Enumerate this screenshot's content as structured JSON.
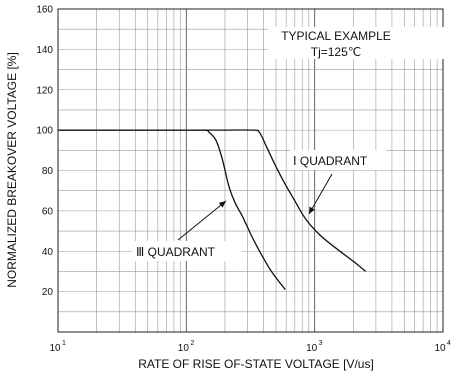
{
  "chart_data": {
    "type": "line",
    "xlabel": "RATE OF RISE OF-STATE VOLTAGE [V/us]",
    "ylabel": "NORMALIZED BREAKOVER VOLTAGE [%]",
    "x_scale": "log",
    "xlim": [
      10,
      10000
    ],
    "ylim": [
      0,
      160
    ],
    "x_ticks": [
      {
        "value": 10,
        "base": "10",
        "exp": "1"
      },
      {
        "value": 100,
        "base": "10",
        "exp": "2"
      },
      {
        "value": 1000,
        "base": "10",
        "exp": "3"
      },
      {
        "value": 10000,
        "base": "10",
        "exp": "4"
      }
    ],
    "y_ticks": [
      20,
      40,
      60,
      80,
      100,
      120,
      140,
      160
    ],
    "grid": true,
    "annotations": {
      "typical_example": "TYPICAL EXAMPLE",
      "tj": "Tj=125℃",
      "quadrant_1": "Ⅰ QUADRANT",
      "quadrant_3": "Ⅲ QUADRANT"
    },
    "series": [
      {
        "x": [
          10,
          100,
          140,
          150,
          170,
          190,
          215,
          240,
          275,
          320,
          380,
          460,
          590
        ],
        "y": [
          100,
          100,
          100,
          99,
          95,
          86,
          72,
          64,
          57,
          48,
          39,
          30,
          21
        ]
      },
      {
        "x": [
          10,
          100,
          200,
          330,
          370,
          420,
          490,
          580,
          700,
          850,
          1100,
          1500,
          2000,
          2500
        ],
        "y": [
          100,
          100,
          100,
          100,
          99,
          92,
          83,
          74,
          65,
          56,
          48,
          41,
          35,
          30
        ]
      }
    ]
  }
}
